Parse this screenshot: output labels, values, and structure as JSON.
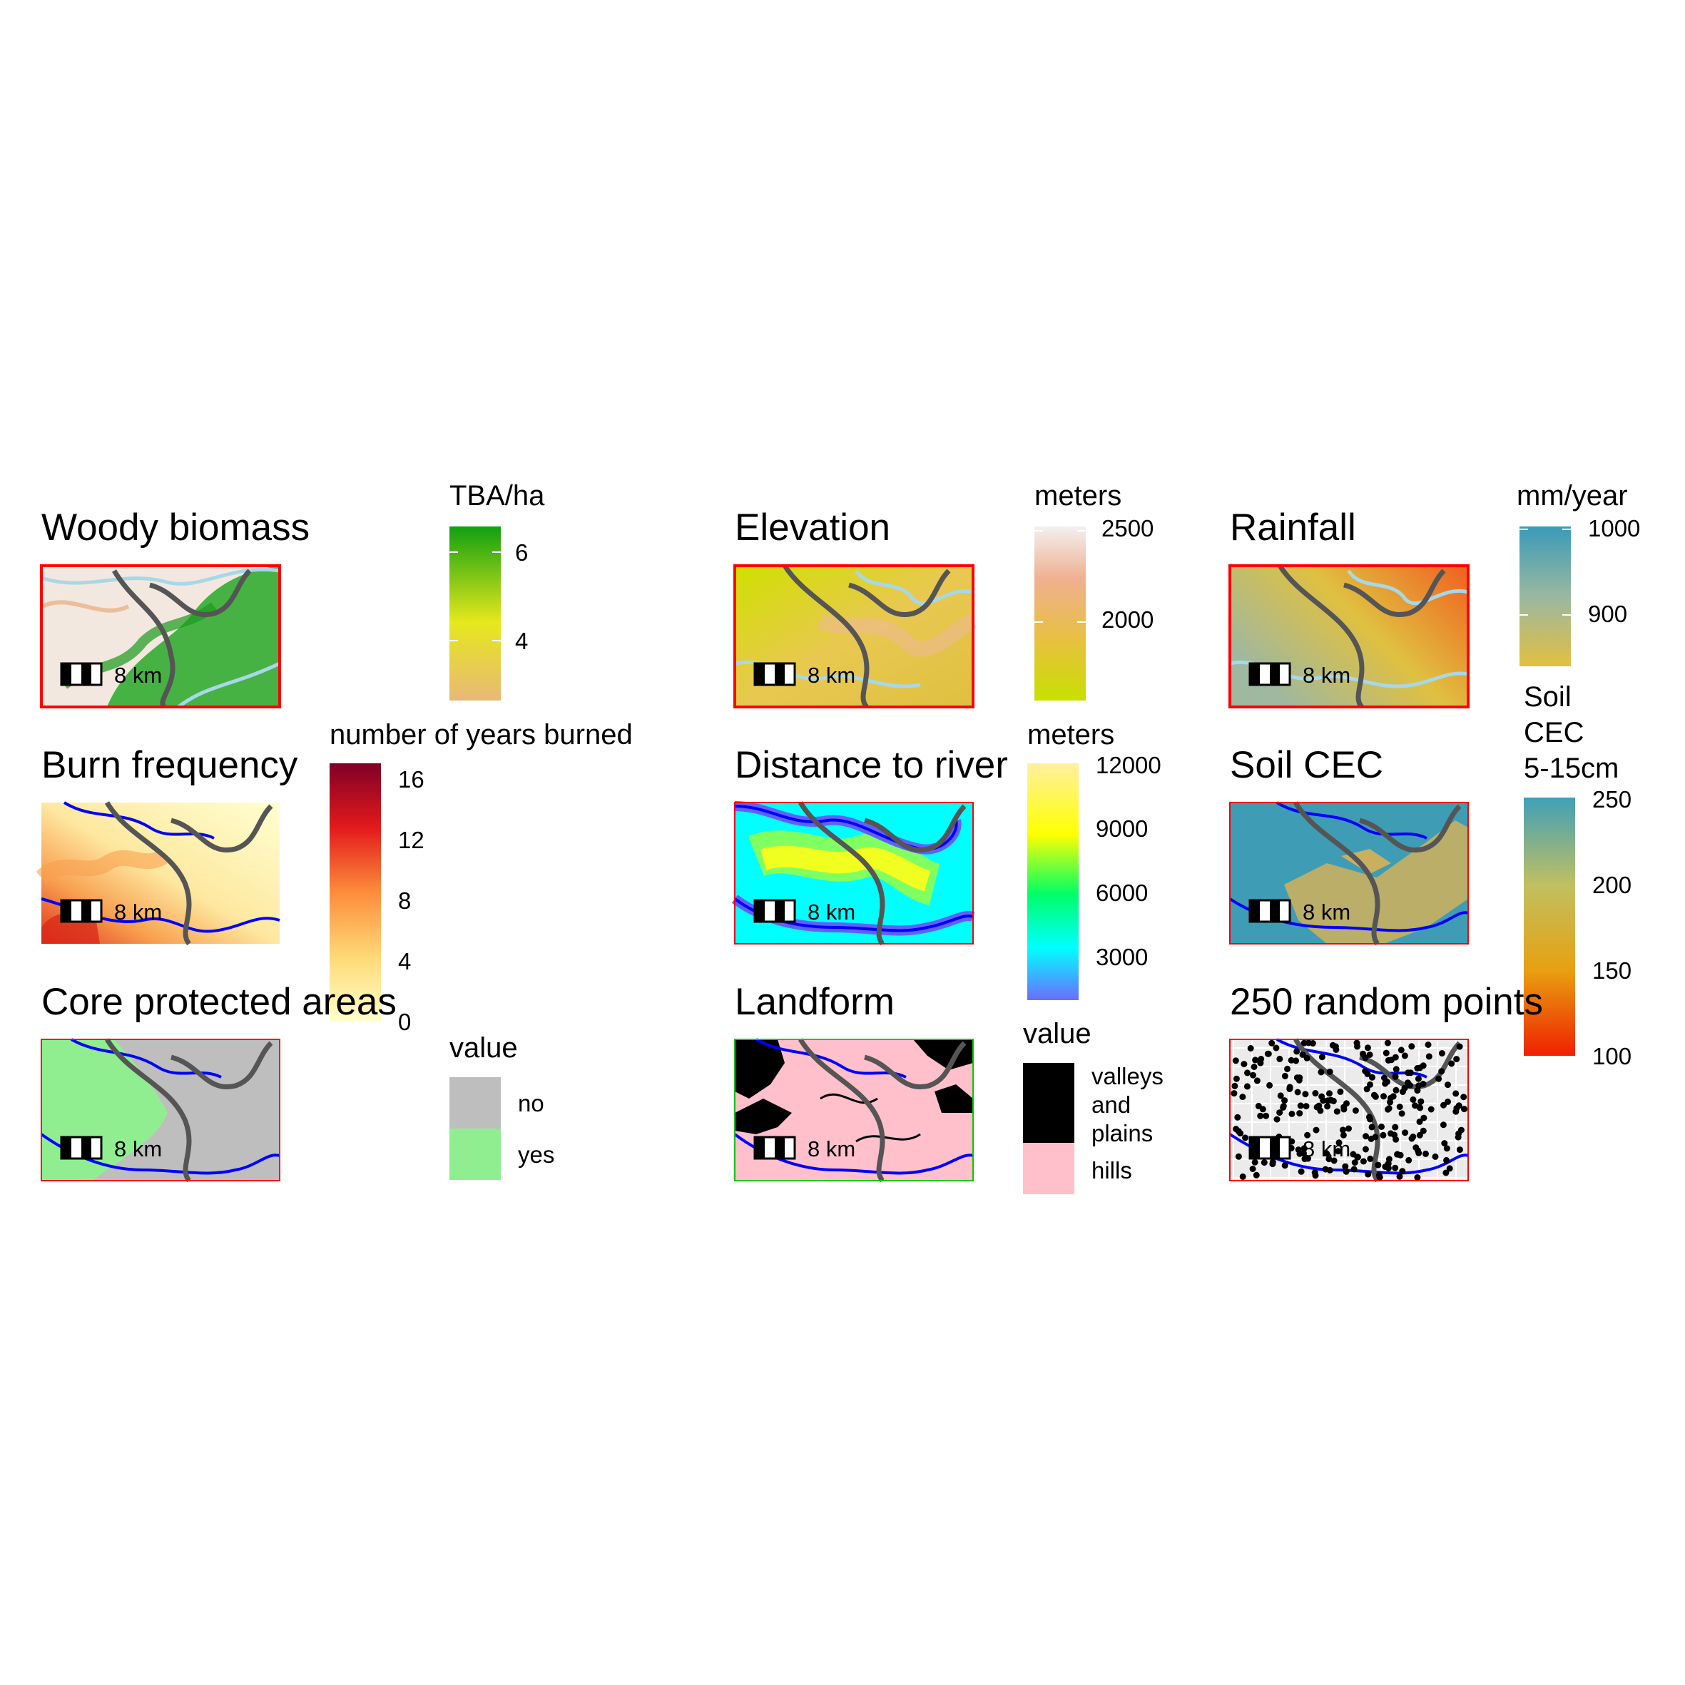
{
  "panels": {
    "woody": {
      "title": "Woody biomass",
      "legend_title": [
        "TBA/ha"
      ],
      "ticks": [
        "6",
        "4"
      ],
      "scale": "8 km",
      "frame": "#ff0000"
    },
    "elevation": {
      "title": "Elevation",
      "legend_title": [
        "meters"
      ],
      "ticks": [
        "2500",
        "2000"
      ],
      "scale": "8 km",
      "frame": "#ff0000"
    },
    "rainfall": {
      "title": "Rainfall",
      "legend_title": [
        "mm/year"
      ],
      "ticks": [
        "1000",
        "900"
      ],
      "scale": "8 km",
      "frame": "#ff0000"
    },
    "burn": {
      "title": "Burn frequency",
      "legend_title": [
        "number of years burned"
      ],
      "ticks": [
        "16",
        "12",
        "8",
        "4",
        "0"
      ],
      "scale": "8 km",
      "frame": "none"
    },
    "distance": {
      "title": "Distance to river",
      "legend_title": [
        "meters"
      ],
      "ticks": [
        "12000",
        "9000",
        "6000",
        "3000"
      ],
      "scale": "8 km",
      "frame": "#ff0000"
    },
    "soil": {
      "title": "Soil CEC",
      "legend_title": [
        "Soil",
        "CEC",
        "5-15cm"
      ],
      "ticks": [
        "250",
        "200",
        "150",
        "100"
      ],
      "scale": "8 km",
      "frame": "#ff0000"
    },
    "core": {
      "title": "Core protected areas",
      "legend_title": [
        "value"
      ],
      "items": [
        "no",
        "yes"
      ],
      "scale": "8 km",
      "frame": "#ff0000"
    },
    "landform": {
      "title": "Landform",
      "legend_title": [
        "value"
      ],
      "items": [
        "valleys",
        "and",
        "plains",
        "hills"
      ],
      "scale": "8 km",
      "frame": "#00cc00"
    },
    "points": {
      "title": "250 random points",
      "scale": "8 km",
      "frame": "#ff0000"
    }
  },
  "colors": {
    "river": "#0000ff",
    "river_light": "#a6d8e8",
    "road": "#555555",
    "woody_ramp": [
      "#e8b878",
      "#e6e81c",
      "#10a010"
    ],
    "elev_ramp": [
      "#c8e000",
      "#e8c040",
      "#f0b090",
      "#f2f0f0"
    ],
    "rain_ramp": [
      "#e2c040",
      "#9ab8a0",
      "#3a9ab8"
    ],
    "burn_ramp": [
      "#ffffcc",
      "#fed976",
      "#fd8d3c",
      "#e31a1c",
      "#800026"
    ],
    "dist_ramp": [
      "#6c6cff",
      "#00ffff",
      "#00ff66",
      "#ffff00",
      "#fff0a0"
    ],
    "soil_ramp": [
      "#f02000",
      "#e8a010",
      "#c0c060",
      "#40a0b8"
    ],
    "core_no": "#bebebe",
    "core_yes": "#90ee90",
    "landform_valleys": "#000000",
    "landform_hills": "#ffc0cb"
  },
  "chart_data": {
    "type": "map",
    "panels": [
      {
        "title": "Woody biomass",
        "legend": "TBA/ha",
        "ticks": [
          6,
          4
        ]
      },
      {
        "title": "Elevation",
        "legend": "meters",
        "ticks": [
          2500,
          2000
        ]
      },
      {
        "title": "Rainfall",
        "legend": "mm/year",
        "ticks": [
          1000,
          900
        ]
      },
      {
        "title": "Burn frequency",
        "legend": "number of years burned",
        "ticks": [
          16,
          12,
          8,
          4,
          0
        ]
      },
      {
        "title": "Distance to river",
        "legend": "meters",
        "ticks": [
          12000,
          9000,
          6000,
          3000
        ]
      },
      {
        "title": "Soil CEC",
        "legend": "Soil CEC 5-15cm",
        "ticks": [
          250,
          200,
          150,
          100
        ]
      },
      {
        "title": "Core protected areas",
        "legend": "value",
        "categories": [
          "no",
          "yes"
        ]
      },
      {
        "title": "Landform",
        "legend": "value",
        "categories": [
          "valleys and plains",
          "hills"
        ]
      },
      {
        "title": "250 random points",
        "point_count": 250
      }
    ],
    "scale_bar": "8 km"
  }
}
